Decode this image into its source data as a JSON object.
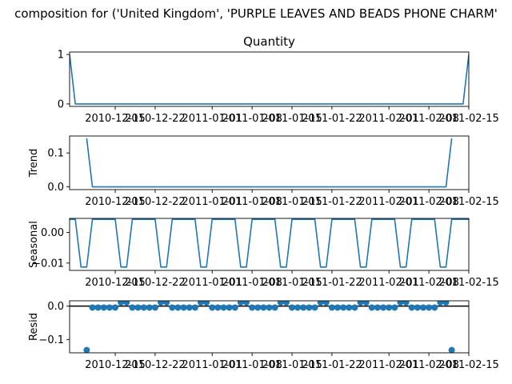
{
  "suptitle": "composition for ('United Kingdom', 'PURPLE LEAVES AND BEADS PHONE CHARM'",
  "colors": {
    "series": "#1f77b4",
    "axis": "#000000",
    "zero_line": "#000000"
  },
  "x_tick_labels": [
    "2010-12-15",
    "2010-12-22",
    "2011-01-01",
    "2011-01-08",
    "2011-01-15",
    "2011-01-22",
    "2011-02-01",
    "2011-02-08",
    "2011-02-15"
  ],
  "chart_data": [
    {
      "type": "line",
      "name": "observed",
      "title": "Quantity",
      "ylabel": "",
      "ylim": [
        -0.05,
        1.05
      ],
      "y_ticks": [
        0,
        1
      ],
      "y_tick_labels": [
        "0",
        "1"
      ],
      "xlim": [
        "2010-12-07",
        "2011-02-15"
      ],
      "x": [
        "2010-12-07",
        "2010-12-08",
        "2010-12-09",
        "2010-12-10",
        "2010-12-11",
        "2010-12-12",
        "2010-12-13",
        "2010-12-14",
        "2010-12-15",
        "2010-12-16",
        "2010-12-17",
        "2010-12-18",
        "2010-12-19",
        "2010-12-20",
        "2010-12-21",
        "2010-12-22",
        "2010-12-23",
        "2010-12-24",
        "2010-12-25",
        "2010-12-26",
        "2010-12-27",
        "2010-12-28",
        "2010-12-29",
        "2010-12-30",
        "2010-12-31",
        "2011-01-01",
        "2011-01-02",
        "2011-01-03",
        "2011-01-04",
        "2011-01-05",
        "2011-01-06",
        "2011-01-07",
        "2011-01-08",
        "2011-01-09",
        "2011-01-10",
        "2011-01-11",
        "2011-01-12",
        "2011-01-13",
        "2011-01-14",
        "2011-01-15",
        "2011-01-16",
        "2011-01-17",
        "2011-01-18",
        "2011-01-19",
        "2011-01-20",
        "2011-01-21",
        "2011-01-22",
        "2011-01-23",
        "2011-01-24",
        "2011-01-25",
        "2011-01-26",
        "2011-01-27",
        "2011-01-28",
        "2011-01-29",
        "2011-01-30",
        "2011-01-31",
        "2011-02-01",
        "2011-02-02",
        "2011-02-03",
        "2011-02-04",
        "2011-02-05",
        "2011-02-06",
        "2011-02-07",
        "2011-02-08",
        "2011-02-09",
        "2011-02-10",
        "2011-02-11",
        "2011-02-12",
        "2011-02-13",
        "2011-02-14",
        "2011-02-15"
      ],
      "values": [
        1,
        0,
        0,
        0,
        0,
        0,
        0,
        0,
        0,
        0,
        0,
        0,
        0,
        0,
        0,
        0,
        0,
        0,
        0,
        0,
        0,
        0,
        0,
        0,
        0,
        0,
        0,
        0,
        0,
        0,
        0,
        0,
        0,
        0,
        0,
        0,
        0,
        0,
        0,
        0,
        0,
        0,
        0,
        0,
        0,
        0,
        0,
        0,
        0,
        0,
        0,
        0,
        0,
        0,
        0,
        0,
        0,
        0,
        0,
        0,
        0,
        0,
        0,
        0,
        0,
        0,
        0,
        0,
        0,
        0,
        1
      ]
    },
    {
      "type": "line",
      "name": "trend",
      "title": "",
      "ylabel": "Trend",
      "ylim": [
        -0.008,
        0.15
      ],
      "y_ticks": [
        0,
        0.1
      ],
      "y_tick_labels": [
        "0.0",
        "0.1"
      ],
      "xlim": [
        "2010-12-07",
        "2011-02-15"
      ],
      "x": [
        "2010-12-10",
        "2010-12-11",
        "2010-12-12",
        "2010-12-13",
        "2010-12-14",
        "2010-12-15",
        "2010-12-16",
        "2010-12-17",
        "2010-12-18",
        "2010-12-19",
        "2010-12-20",
        "2010-12-21",
        "2010-12-22",
        "2010-12-23",
        "2010-12-24",
        "2010-12-25",
        "2010-12-26",
        "2010-12-27",
        "2010-12-28",
        "2010-12-29",
        "2010-12-30",
        "2010-12-31",
        "2011-01-01",
        "2011-01-02",
        "2011-01-03",
        "2011-01-04",
        "2011-01-05",
        "2011-01-06",
        "2011-01-07",
        "2011-01-08",
        "2011-01-09",
        "2011-01-10",
        "2011-01-11",
        "2011-01-12",
        "2011-01-13",
        "2011-01-14",
        "2011-01-15",
        "2011-01-16",
        "2011-01-17",
        "2011-01-18",
        "2011-01-19",
        "2011-01-20",
        "2011-01-21",
        "2011-01-22",
        "2011-01-23",
        "2011-01-24",
        "2011-01-25",
        "2011-01-26",
        "2011-01-27",
        "2011-01-28",
        "2011-01-29",
        "2011-01-30",
        "2011-01-31",
        "2011-02-01",
        "2011-02-02",
        "2011-02-03",
        "2011-02-04",
        "2011-02-05",
        "2011-02-06",
        "2011-02-07",
        "2011-02-08",
        "2011-02-09",
        "2011-02-10",
        "2011-02-11",
        "2011-02-12"
      ],
      "values": [
        0.143,
        0,
        0,
        0,
        0,
        0,
        0,
        0,
        0,
        0,
        0,
        0,
        0,
        0,
        0,
        0,
        0,
        0,
        0,
        0,
        0,
        0,
        0,
        0,
        0,
        0,
        0,
        0,
        0,
        0,
        0,
        0,
        0,
        0,
        0,
        0,
        0,
        0,
        0,
        0,
        0,
        0,
        0,
        0,
        0,
        0,
        0,
        0,
        0,
        0,
        0,
        0,
        0,
        0,
        0,
        0,
        0,
        0,
        0,
        0,
        0,
        0,
        0,
        0,
        0.143
      ]
    },
    {
      "type": "line",
      "name": "seasonal",
      "title": "",
      "ylabel": "Seasonal",
      "ylim": [
        -0.0124,
        0.0046
      ],
      "y_ticks": [
        0,
        -0.01
      ],
      "y_tick_labels": [
        "0.00",
        "−0.01"
      ],
      "xlim": [
        "2010-12-07",
        "2011-02-15"
      ],
      "x": [
        "2010-12-07",
        "2010-12-08",
        "2010-12-09",
        "2010-12-10",
        "2010-12-11",
        "2010-12-12",
        "2010-12-13",
        "2010-12-14",
        "2010-12-15",
        "2010-12-16",
        "2010-12-17",
        "2010-12-18",
        "2010-12-19",
        "2010-12-20",
        "2010-12-21",
        "2010-12-22",
        "2010-12-23",
        "2010-12-24",
        "2010-12-25",
        "2010-12-26",
        "2010-12-27",
        "2010-12-28",
        "2010-12-29",
        "2010-12-30",
        "2010-12-31",
        "2011-01-01",
        "2011-01-02",
        "2011-01-03",
        "2011-01-04",
        "2011-01-05",
        "2011-01-06",
        "2011-01-07",
        "2011-01-08",
        "2011-01-09",
        "2011-01-10",
        "2011-01-11",
        "2011-01-12",
        "2011-01-13",
        "2011-01-14",
        "2011-01-15",
        "2011-01-16",
        "2011-01-17",
        "2011-01-18",
        "2011-01-19",
        "2011-01-20",
        "2011-01-21",
        "2011-01-22",
        "2011-01-23",
        "2011-01-24",
        "2011-01-25",
        "2011-01-26",
        "2011-01-27",
        "2011-01-28",
        "2011-01-29",
        "2011-01-30",
        "2011-01-31",
        "2011-02-01",
        "2011-02-02",
        "2011-02-03",
        "2011-02-04",
        "2011-02-05",
        "2011-02-06",
        "2011-02-07",
        "2011-02-08",
        "2011-02-09",
        "2011-02-10",
        "2011-02-11",
        "2011-02-12",
        "2011-02-13",
        "2011-02-14",
        "2011-02-15"
      ],
      "values": [
        0.0043,
        0.0043,
        -0.0113,
        -0.0113,
        0.0043,
        0.0043,
        0.0043,
        0.0043,
        0.0043,
        -0.0113,
        -0.0113,
        0.0043,
        0.0043,
        0.0043,
        0.0043,
        0.0043,
        -0.0113,
        -0.0113,
        0.0043,
        0.0043,
        0.0043,
        0.0043,
        0.0043,
        -0.0113,
        -0.0113,
        0.0043,
        0.0043,
        0.0043,
        0.0043,
        0.0043,
        -0.0113,
        -0.0113,
        0.0043,
        0.0043,
        0.0043,
        0.0043,
        0.0043,
        -0.0113,
        -0.0113,
        0.0043,
        0.0043,
        0.0043,
        0.0043,
        0.0043,
        -0.0113,
        -0.0113,
        0.0043,
        0.0043,
        0.0043,
        0.0043,
        0.0043,
        -0.0113,
        -0.0113,
        0.0043,
        0.0043,
        0.0043,
        0.0043,
        0.0043,
        -0.0113,
        -0.0113,
        0.0043,
        0.0043,
        0.0043,
        0.0043,
        0.0043,
        -0.0113,
        -0.0113,
        0.0043,
        0.0043,
        0.0043,
        0.0043
      ]
    },
    {
      "type": "scatter",
      "name": "resid",
      "title": "",
      "ylabel": "Resid",
      "ylim": [
        -0.14,
        0.016
      ],
      "y_ticks": [
        0,
        -0.1
      ],
      "y_tick_labels": [
        "0.0",
        "−0.1"
      ],
      "xlim": [
        "2010-12-07",
        "2011-02-15"
      ],
      "zero_line": true,
      "x": [
        "2010-12-10",
        "2010-12-11",
        "2010-12-12",
        "2010-12-13",
        "2010-12-14",
        "2010-12-15",
        "2010-12-16",
        "2010-12-17",
        "2010-12-18",
        "2010-12-19",
        "2010-12-20",
        "2010-12-21",
        "2010-12-22",
        "2010-12-23",
        "2010-12-24",
        "2010-12-25",
        "2010-12-26",
        "2010-12-27",
        "2010-12-28",
        "2010-12-29",
        "2010-12-30",
        "2010-12-31",
        "2011-01-01",
        "2011-01-02",
        "2011-01-03",
        "2011-01-04",
        "2011-01-05",
        "2011-01-06",
        "2011-01-07",
        "2011-01-08",
        "2011-01-09",
        "2011-01-10",
        "2011-01-11",
        "2011-01-12",
        "2011-01-13",
        "2011-01-14",
        "2011-01-15",
        "2011-01-16",
        "2011-01-17",
        "2011-01-18",
        "2011-01-19",
        "2011-01-20",
        "2011-01-21",
        "2011-01-22",
        "2011-01-23",
        "2011-01-24",
        "2011-01-25",
        "2011-01-26",
        "2011-01-27",
        "2011-01-28",
        "2011-01-29",
        "2011-01-30",
        "2011-01-31",
        "2011-02-01",
        "2011-02-02",
        "2011-02-03",
        "2011-02-04",
        "2011-02-05",
        "2011-02-06",
        "2011-02-07",
        "2011-02-08",
        "2011-02-09",
        "2011-02-10",
        "2011-02-11",
        "2011-02-12"
      ],
      "values": [
        -0.1318,
        -0.0043,
        -0.0043,
        -0.0043,
        -0.0043,
        -0.0043,
        0.0113,
        0.0113,
        -0.0043,
        -0.0043,
        -0.0043,
        -0.0043,
        -0.0043,
        0.0113,
        0.0113,
        -0.0043,
        -0.0043,
        -0.0043,
        -0.0043,
        -0.0043,
        0.0113,
        0.0113,
        -0.0043,
        -0.0043,
        -0.0043,
        -0.0043,
        -0.0043,
        0.0113,
        0.0113,
        -0.0043,
        -0.0043,
        -0.0043,
        -0.0043,
        -0.0043,
        0.0113,
        0.0113,
        -0.0043,
        -0.0043,
        -0.0043,
        -0.0043,
        -0.0043,
        0.0113,
        0.0113,
        -0.0043,
        -0.0043,
        -0.0043,
        -0.0043,
        -0.0043,
        0.0113,
        0.0113,
        -0.0043,
        -0.0043,
        -0.0043,
        -0.0043,
        -0.0043,
        0.0113,
        0.0113,
        -0.0043,
        -0.0043,
        -0.0043,
        -0.0043,
        -0.0043,
        0.0113,
        0.0113,
        -0.1318
      ]
    }
  ]
}
